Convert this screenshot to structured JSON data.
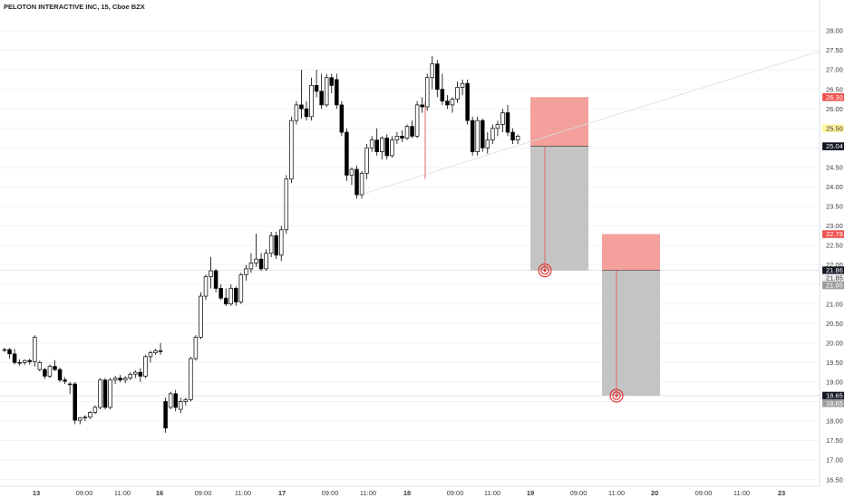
{
  "chart_data": {
    "type": "candlestick",
    "title": "PELOTON INTERACTIVE INC, 15, Cboe BZX",
    "ylim": [
      16.3,
      28.3
    ],
    "y_ticks": [
      "16.50",
      "17.00",
      "17.50",
      "18.00",
      "18.50",
      "19.00",
      "19.50",
      "20.00",
      "20.50",
      "21.00",
      "21.50",
      "22.00",
      "22.50",
      "23.00",
      "23.50",
      "24.00",
      "24.50",
      "25.00",
      "25.50",
      "26.00",
      "26.50",
      "27.00",
      "27.50",
      "28.00"
    ],
    "x_ticks": [
      "13",
      "09:00",
      "11:00",
      "16",
      "09:00",
      "11:00",
      "17",
      "09:00",
      "11:00",
      "18",
      "09:00",
      "11:00",
      "19",
      "09:00",
      "11:00",
      "20",
      "09:00",
      "11:00",
      "23"
    ],
    "x_ticks_bold": [
      "13",
      "16",
      "17",
      "18",
      "19",
      "20",
      "23"
    ],
    "candles": [
      [
        19.83,
        19.88,
        19.77,
        19.83
      ],
      [
        19.83,
        19.87,
        19.6,
        19.72
      ],
      [
        19.72,
        19.85,
        19.45,
        19.5
      ],
      [
        19.5,
        19.58,
        19.42,
        19.5
      ],
      [
        19.5,
        19.58,
        19.44,
        19.55
      ],
      [
        19.55,
        19.6,
        19.45,
        19.52
      ],
      [
        19.52,
        20.2,
        19.4,
        20.15
      ],
      [
        19.32,
        19.55,
        19.27,
        19.5
      ],
      [
        19.32,
        19.36,
        19.08,
        19.15
      ],
      [
        19.15,
        19.45,
        19.1,
        19.4
      ],
      [
        19.4,
        19.56,
        19.28,
        19.32
      ],
      [
        19.32,
        19.37,
        19.0,
        19.05
      ],
      [
        19.05,
        19.12,
        18.95,
        19.02
      ],
      [
        18.95,
        19.0,
        18.7,
        18.95
      ],
      [
        18.95,
        19.0,
        17.92,
        18.02
      ],
      [
        18.02,
        18.1,
        17.92,
        18.08
      ],
      [
        18.08,
        18.15,
        18.0,
        18.1
      ],
      [
        18.1,
        18.25,
        18.05,
        18.22
      ],
      [
        18.22,
        18.4,
        18.18,
        18.35
      ],
      [
        18.35,
        19.1,
        18.3,
        19.05
      ],
      [
        19.05,
        19.1,
        18.3,
        18.35
      ],
      [
        18.35,
        19.1,
        18.3,
        19.05
      ],
      [
        19.05,
        19.15,
        18.95,
        19.1
      ],
      [
        19.1,
        19.18,
        19.0,
        19.05
      ],
      [
        19.05,
        19.15,
        18.97,
        19.1
      ],
      [
        19.1,
        19.25,
        19.05,
        19.2
      ],
      [
        19.2,
        19.3,
        19.1,
        19.25
      ],
      [
        19.25,
        19.35,
        19.0,
        19.15
      ],
      [
        19.15,
        19.7,
        19.1,
        19.65
      ],
      [
        19.65,
        19.8,
        19.5,
        19.75
      ],
      [
        19.75,
        19.85,
        19.7,
        19.8
      ],
      [
        19.8,
        20.0,
        19.7,
        19.78
      ],
      [
        18.5,
        18.6,
        17.7,
        17.82
      ],
      [
        18.35,
        18.75,
        18.3,
        18.7
      ],
      [
        18.7,
        18.8,
        18.25,
        18.35
      ],
      [
        18.3,
        18.6,
        18.2,
        18.5
      ],
      [
        18.5,
        18.6,
        18.4,
        18.55
      ],
      [
        18.55,
        19.65,
        18.5,
        19.6
      ],
      [
        19.6,
        20.2,
        19.55,
        20.15
      ],
      [
        20.15,
        21.3,
        20.1,
        21.2
      ],
      [
        21.2,
        21.75,
        21.1,
        21.7
      ],
      [
        21.7,
        22.2,
        21.4,
        21.85
      ],
      [
        21.85,
        21.9,
        21.3,
        21.4
      ],
      [
        21.4,
        21.5,
        21.1,
        21.15
      ],
      [
        21.15,
        21.4,
        20.95,
        21.0
      ],
      [
        21.0,
        21.5,
        20.95,
        21.4
      ],
      [
        21.4,
        21.45,
        20.95,
        21.05
      ],
      [
        21.05,
        21.8,
        21.0,
        21.75
      ],
      [
        21.75,
        22.0,
        21.6,
        21.9
      ],
      [
        21.9,
        22.3,
        21.8,
        22.05
      ],
      [
        22.05,
        22.8,
        21.95,
        22.15
      ],
      [
        22.15,
        22.3,
        21.85,
        21.9
      ],
      [
        21.9,
        22.4,
        21.85,
        22.3
      ],
      [
        22.3,
        22.85,
        22.2,
        22.75
      ],
      [
        22.75,
        22.85,
        22.15,
        22.25
      ],
      [
        22.25,
        23.0,
        22.1,
        22.9
      ],
      [
        22.9,
        24.3,
        22.8,
        24.2
      ],
      [
        24.2,
        25.8,
        24.1,
        25.7
      ],
      [
        25.7,
        26.2,
        25.6,
        26.1
      ],
      [
        26.1,
        27.0,
        25.75,
        26.0
      ],
      [
        26.0,
        26.2,
        25.7,
        25.8
      ],
      [
        25.8,
        26.8,
        25.7,
        26.6
      ],
      [
        26.6,
        27.0,
        26.3,
        26.45
      ],
      [
        26.45,
        26.9,
        26.0,
        26.1
      ],
      [
        26.1,
        26.9,
        26.05,
        26.8
      ],
      [
        26.8,
        26.9,
        26.4,
        26.6
      ],
      [
        26.75,
        26.9,
        26.0,
        26.1
      ],
      [
        26.1,
        26.2,
        25.3,
        25.4
      ],
      [
        25.4,
        25.5,
        24.15,
        24.3
      ],
      [
        24.3,
        24.5,
        24.05,
        24.45
      ],
      [
        24.45,
        24.55,
        23.7,
        23.8
      ],
      [
        23.8,
        24.4,
        23.7,
        24.35
      ],
      [
        24.35,
        25.1,
        24.2,
        25.0
      ],
      [
        25.0,
        25.3,
        24.9,
        25.2
      ],
      [
        25.2,
        25.5,
        24.8,
        24.9
      ],
      [
        24.9,
        25.3,
        24.7,
        25.25
      ],
      [
        25.25,
        25.35,
        24.7,
        24.8
      ],
      [
        24.8,
        25.3,
        24.75,
        25.2
      ],
      [
        25.2,
        25.4,
        25.1,
        25.3
      ],
      [
        25.3,
        25.45,
        25.15,
        25.25
      ],
      [
        25.25,
        25.6,
        25.2,
        25.55
      ],
      [
        25.55,
        25.7,
        25.25,
        25.3
      ],
      [
        25.3,
        26.2,
        25.25,
        26.1
      ],
      [
        26.1,
        26.3,
        25.9,
        26.05
      ],
      [
        26.05,
        26.9,
        25.95,
        26.8
      ],
      [
        26.8,
        27.35,
        26.5,
        27.15
      ],
      [
        27.15,
        27.25,
        26.3,
        26.5
      ],
      [
        26.5,
        26.9,
        26.1,
        26.2
      ],
      [
        26.2,
        26.35,
        26.0,
        26.1
      ],
      [
        26.1,
        26.3,
        25.9,
        26.25
      ],
      [
        26.25,
        26.7,
        26.15,
        26.55
      ],
      [
        26.55,
        26.75,
        26.35,
        26.65
      ],
      [
        26.65,
        26.75,
        25.6,
        25.7
      ],
      [
        25.7,
        25.8,
        24.8,
        24.9
      ],
      [
        24.9,
        25.8,
        24.8,
        25.7
      ],
      [
        25.7,
        25.75,
        24.9,
        25.0
      ],
      [
        25.0,
        25.4,
        24.85,
        25.2
      ],
      [
        25.2,
        25.6,
        25.1,
        25.5
      ],
      [
        25.5,
        25.7,
        25.3,
        25.6
      ],
      [
        25.6,
        26.0,
        25.4,
        25.9
      ],
      [
        25.9,
        26.1,
        25.3,
        25.4
      ],
      [
        25.4,
        25.5,
        25.1,
        25.2
      ],
      [
        25.2,
        25.35,
        25.1,
        25.3
      ]
    ],
    "trendline": {
      "x1": 76,
      "y1": 23.75,
      "x2": 180,
      "y2": 26.5
    },
    "positions": [
      {
        "entry": 25.04,
        "stop": 26.3,
        "target": 21.86
      },
      {
        "entry": 21.86,
        "stop": 22.79,
        "target": 18.65
      }
    ],
    "horizontal_lines": [
      21.86,
      18.65
    ],
    "price_labels": [
      {
        "value": 26.3,
        "text": "26.30",
        "style": "red"
      },
      {
        "value": 25.5,
        "text": "25.50",
        "style": "yellow"
      },
      {
        "value": 25.04,
        "text": "25.04",
        "style": "dark"
      },
      {
        "value": 22.79,
        "text": "22.79",
        "style": "red"
      },
      {
        "value": 21.86,
        "text": "21.86",
        "style": "dark"
      },
      {
        "value": 21.85,
        "text": "21.85",
        "style": "light"
      },
      {
        "value": 21.85,
        "text": "21.85",
        "style": "grey"
      },
      {
        "value": 18.65,
        "text": "18.65",
        "style": "dark"
      },
      {
        "value": 18.65,
        "text": "18.65",
        "style": "grey"
      }
    ],
    "colors": {
      "up_fill": "#ffffff",
      "down_fill": "#000000",
      "wick": "#000000",
      "stop_zone": "#f4a09c",
      "target_zone": "#c4c4c4",
      "target_line": "#e06666",
      "grid": "#f0f3fa",
      "axis_text": "#3a3a3a",
      "label_red": "#ef5350",
      "label_yellow": "#fff59d",
      "label_dark": "#131722"
    }
  }
}
